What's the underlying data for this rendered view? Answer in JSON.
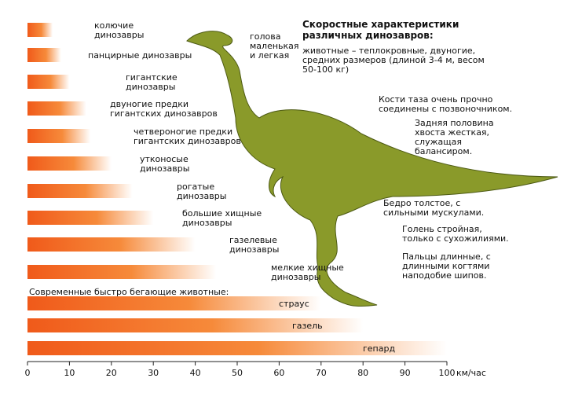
{
  "chart_data": {
    "type": "bar",
    "orientation": "horizontal",
    "title": "Скоростные характеристики\nразличных динозавров:",
    "categories": [
      "колючие\nдинозавры",
      "панцирные динозавры",
      "гигантские\nдинозавры",
      "двуногие предки\nгигантских динозавров",
      "четвероногие предки\nгигантских динозавров",
      "утконосые\nдинозавры",
      "рогатые\nдинозавры",
      "большие хищные\nдинозавры",
      "газелевые\nдинозавры",
      "мелкие хищные\nдинозавры",
      "страус",
      "газель",
      "гепард"
    ],
    "values": [
      6,
      8,
      10,
      14,
      15,
      20,
      25,
      30,
      40,
      45,
      70,
      80,
      100
    ],
    "color": "#f05a1a",
    "group_label": "Современные быстро бегающие животные:",
    "x_unit": "км/час",
    "xlim": [
      0,
      100
    ],
    "xticks": [
      0,
      10,
      20,
      30,
      40,
      50,
      60,
      70,
      80,
      90,
      100
    ],
    "annotations": [
      "голова\nмаленькая\nи легкая",
      "животные – теплокровные, двуногие,\nсредних размеров (длиной 3-4 м, весом\n50-100 кг)",
      "Кости таза очень прочно\nсоединены с позвоночником.",
      "Задняя половина\nхвоста жесткая,\nслужащая\nбалансиром.",
      "Бедро толстое, с\nсильными мускулами.",
      "Голень стройная,\nтолько с сухожилиями.",
      "Пальцы длинные, с\nдлинными когтями\nнаподобие шипов."
    ]
  }
}
